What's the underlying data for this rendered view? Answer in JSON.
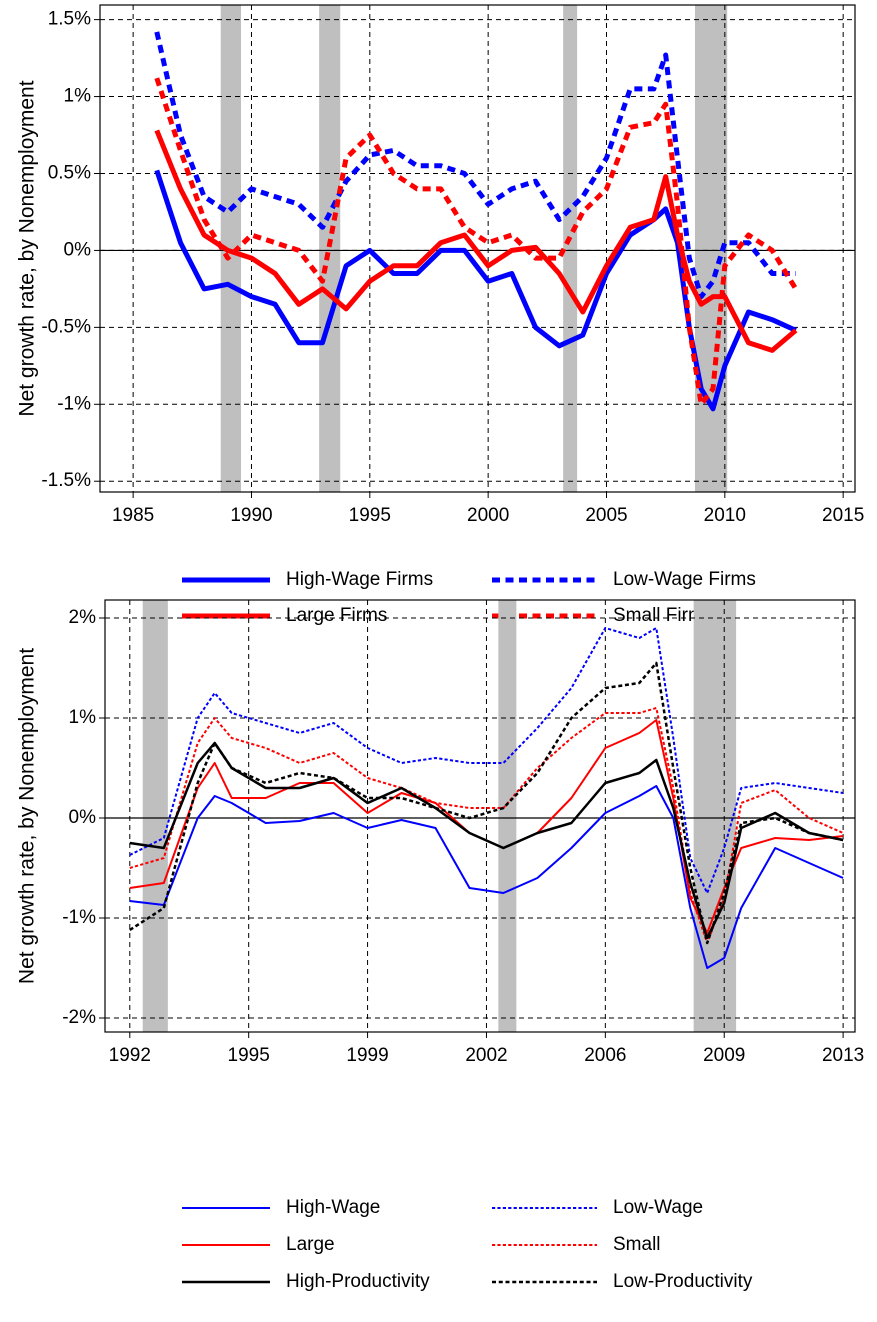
{
  "chart_data": [
    {
      "type": "line",
      "ylabel": "Net growth rate, by Nonemployment",
      "xlim": [
        1983.6,
        2015.5
      ],
      "ylim": [
        -1.57,
        1.595
      ],
      "xticks": [
        1985,
        1990,
        1995,
        2000,
        2005,
        2010,
        2015
      ],
      "yticks": [
        {
          "value": -1.5,
          "label": "-1.5%"
        },
        {
          "value": -1,
          "label": "-1%"
        },
        {
          "value": -0.5,
          "label": "-0.5%"
        },
        {
          "value": 0,
          "label": "0%"
        },
        {
          "value": 0.5,
          "label": "0.5%"
        },
        {
          "value": 1,
          "label": "1%"
        },
        {
          "value": 1.5,
          "label": "1.5%"
        }
      ],
      "grid": true,
      "recessions": [
        [
          1988.7,
          1989.56
        ],
        [
          1992.86,
          1993.75
        ],
        [
          2003.17,
          2003.76
        ],
        [
          2008.74,
          2010.1
        ]
      ],
      "x": [
        1986,
        1987,
        1988,
        1989,
        1990,
        1991,
        1992,
        1993,
        1994,
        1995,
        1996,
        1997,
        1998,
        1999,
        2000,
        2001,
        2002,
        2003,
        2004,
        2005,
        2006,
        2007,
        2007.5,
        2008,
        2008.5,
        2009,
        2009.5,
        2010,
        2011,
        2012,
        2013
      ],
      "series": [
        {
          "name": "High-Wage Firms",
          "color": "#0000ff",
          "dashed": false,
          "width": 5,
          "values": [
            0.52,
            0.05,
            -0.25,
            -0.22,
            -0.3,
            -0.35,
            -0.6,
            -0.6,
            -0.1,
            0,
            -0.15,
            -0.15,
            0,
            0,
            -0.2,
            -0.15,
            -0.5,
            -0.62,
            -0.55,
            -0.15,
            0.1,
            0.2,
            0.27,
            0.05,
            -0.5,
            -0.9,
            -1.03,
            -0.75,
            -0.4,
            -0.45,
            -0.52
          ]
        },
        {
          "name": "Low-Wage Firms",
          "color": "#0000ff",
          "dashed": true,
          "width": 5,
          "values": [
            1.42,
            0.75,
            0.35,
            0.25,
            0.4,
            0.35,
            0.3,
            0.15,
            0.45,
            0.62,
            0.65,
            0.55,
            0.55,
            0.5,
            0.3,
            0.4,
            0.45,
            0.2,
            0.35,
            0.6,
            1.05,
            1.05,
            1.27,
            0.6,
            -0.05,
            -0.3,
            -0.2,
            0.05,
            0.05,
            -0.15,
            -0.15
          ]
        },
        {
          "name": "Large Firms",
          "color": "#ff0000",
          "dashed": false,
          "width": 5,
          "values": [
            0.78,
            0.4,
            0.1,
            0,
            -0.05,
            -0.15,
            -0.35,
            -0.25,
            -0.38,
            -0.2,
            -0.1,
            -0.1,
            0.05,
            0.1,
            -0.1,
            0,
            0.02,
            -0.15,
            -0.4,
            -0.1,
            0.15,
            0.2,
            0.48,
            0.1,
            -0.2,
            -0.35,
            -0.3,
            -0.3,
            -0.6,
            -0.65,
            -0.52
          ]
        },
        {
          "name": "Small Firms",
          "color": "#ff0000",
          "dashed": true,
          "width": 5,
          "values": [
            1.12,
            0.65,
            0.2,
            -0.05,
            0.1,
            0.05,
            0,
            -0.2,
            0.6,
            0.75,
            0.5,
            0.4,
            0.4,
            0.15,
            0.05,
            0.1,
            -0.05,
            -0.05,
            0.25,
            0.4,
            0.8,
            0.83,
            0.95,
            0.3,
            -0.5,
            -1,
            -0.9,
            -0.1,
            0.1,
            0,
            -0.25
          ]
        }
      ]
    },
    {
      "type": "line",
      "ylabel": "Net growth rate, by Nonemployment",
      "xlim": [
        1991.27,
        2013.35
      ],
      "ylim": [
        -2.14,
        2.18
      ],
      "xticks": [
        1992,
        {
          "value": 1995.5,
          "label": "1995"
        },
        1999,
        {
          "value": 2002.5,
          "label": "2002"
        },
        2006,
        {
          "value": 2009.5,
          "label": "2009"
        },
        2013
      ],
      "yticks": [
        {
          "value": -2,
          "label": "-2%"
        },
        {
          "value": -1,
          "label": "-1%"
        },
        {
          "value": 0,
          "label": "0%"
        },
        {
          "value": 1,
          "label": "1%"
        },
        {
          "value": 2,
          "label": "2%"
        }
      ],
      "grid": true,
      "recessions": [
        [
          1992.38,
          1993.12
        ],
        [
          2002.85,
          2003.38
        ],
        [
          2008.6,
          2009.85
        ]
      ],
      "x": [
        1992,
        1993,
        1994,
        1994.5,
        1995,
        1996,
        1997,
        1998,
        1999,
        2000,
        2001,
        2002,
        2003,
        2004,
        2005,
        2006,
        2007,
        2007.5,
        2008,
        2008.5,
        2009,
        2009.5,
        2010,
        2011,
        2012,
        2013
      ],
      "series": [
        {
          "name": "High-Wage",
          "color": "#0000ff",
          "dashed": false,
          "width": 2,
          "values": [
            -0.83,
            -0.87,
            0,
            0.22,
            0.15,
            -0.05,
            -0.03,
            0.05,
            -0.1,
            -0.02,
            -0.1,
            -0.7,
            -0.75,
            -0.6,
            -0.3,
            0.05,
            0.22,
            0.32,
            0,
            -0.9,
            -1.5,
            -1.4,
            -0.9,
            -0.3,
            -0.45,
            -0.6
          ]
        },
        {
          "name": "Low-Wage",
          "color": "#0000ff",
          "dashed": true,
          "width": 2,
          "values": [
            -0.37,
            -0.2,
            1,
            1.25,
            1.05,
            0.95,
            0.85,
            0.95,
            0.7,
            0.55,
            0.6,
            0.55,
            0.55,
            0.9,
            1.3,
            1.9,
            1.8,
            1.9,
            0.8,
            -0.4,
            -0.75,
            -0.3,
            0.3,
            0.35,
            0.3,
            0.25
          ]
        },
        {
          "name": "Large",
          "color": "#ff0000",
          "dashed": false,
          "width": 2,
          "values": [
            -0.7,
            -0.65,
            0.3,
            0.55,
            0.2,
            0.2,
            0.35,
            0.35,
            0.05,
            0.25,
            0.15,
            -0.15,
            -0.3,
            -0.15,
            0.2,
            0.7,
            0.85,
            0.98,
            0.2,
            -0.8,
            -1.15,
            -0.7,
            -0.3,
            -0.2,
            -0.22,
            -0.18
          ]
        },
        {
          "name": "Small",
          "color": "#ff0000",
          "dashed": true,
          "width": 2,
          "values": [
            -0.5,
            -0.4,
            0.75,
            1,
            0.8,
            0.7,
            0.55,
            0.65,
            0.4,
            0.3,
            0.15,
            0.1,
            0.1,
            0.5,
            0.8,
            1.05,
            1.05,
            1.1,
            0.3,
            -0.75,
            -1.25,
            -0.8,
            0.15,
            0.28,
            0,
            -0.15
          ]
        },
        {
          "name": "High-Productivity",
          "color": "#000000",
          "dashed": false,
          "width": 2.5,
          "values": [
            -0.25,
            -0.3,
            0.55,
            0.75,
            0.5,
            0.3,
            0.3,
            0.4,
            0.15,
            0.3,
            0.1,
            -0.15,
            -0.3,
            -0.15,
            -0.05,
            0.35,
            0.45,
            0.58,
            0.1,
            -0.65,
            -1.2,
            -0.85,
            -0.1,
            0.05,
            -0.15,
            -0.22
          ]
        },
        {
          "name": "Low-Productivity",
          "color": "#000000",
          "dashed": true,
          "width": 2.5,
          "values": [
            -1.12,
            -0.9,
            0.35,
            0.75,
            0.5,
            0.35,
            0.45,
            0.4,
            0.2,
            0.2,
            0.1,
            0,
            0.1,
            0.45,
            1,
            1.3,
            1.35,
            1.55,
            0.5,
            -0.5,
            -1.25,
            -0.75,
            -0.05,
            0,
            -0.15,
            -0.22
          ]
        }
      ]
    }
  ]
}
